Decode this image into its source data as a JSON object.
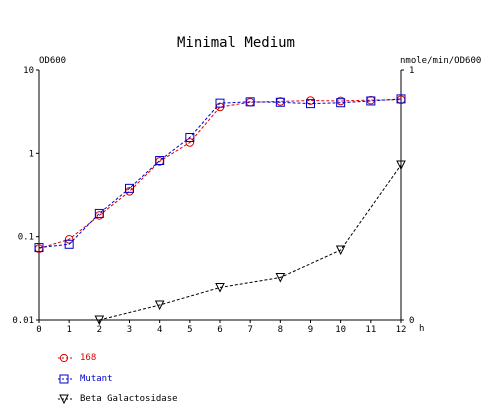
{
  "chart_data": {
    "type": "line",
    "title": "Minimal Medium",
    "xlabel": "h",
    "ylabel_left": "OD600",
    "ylabel_right": "nmole/min/OD600",
    "x_ticks": [
      0,
      1,
      2,
      3,
      4,
      5,
      6,
      7,
      8,
      9,
      10,
      11,
      12
    ],
    "xlim": [
      0,
      12
    ],
    "y_left_scale": "log",
    "y_left_lim": [
      0.01,
      10
    ],
    "y_left_ticks": [
      "10",
      "1",
      "0.1",
      "0.01"
    ],
    "y_right_scale": "linear",
    "y_right_lim": [
      0,
      1
    ],
    "y_right_ticks": [
      "1",
      "0"
    ],
    "grid": false,
    "legend_position": "bottom-left",
    "series": [
      {
        "name": "168",
        "axis": "left",
        "color": "#dd0000",
        "marker": "circle",
        "x": [
          0,
          1,
          2,
          3,
          4,
          5,
          6,
          7,
          8,
          9,
          10,
          11,
          12
        ],
        "y": [
          0.072,
          0.093,
          0.18,
          0.35,
          0.8,
          1.35,
          3.6,
          4.1,
          4.2,
          4.3,
          4.25,
          4.35,
          4.4
        ]
      },
      {
        "name": "Mutant",
        "axis": "left",
        "color": "#0000cc",
        "marker": "square",
        "x": [
          0,
          1,
          2,
          3,
          4,
          5,
          6,
          7,
          8,
          9,
          10,
          11,
          12
        ],
        "y": [
          0.074,
          0.081,
          0.19,
          0.38,
          0.82,
          1.55,
          4.0,
          4.15,
          4.1,
          3.95,
          4.05,
          4.25,
          4.5
        ]
      },
      {
        "name": "Beta Galactosidase",
        "axis": "right",
        "color": "#000000",
        "marker": "triangle-down",
        "x": [
          2,
          4,
          6,
          8,
          10,
          12
        ],
        "y": [
          0.0,
          0.06,
          0.13,
          0.17,
          0.28,
          0.62
        ]
      }
    ]
  }
}
